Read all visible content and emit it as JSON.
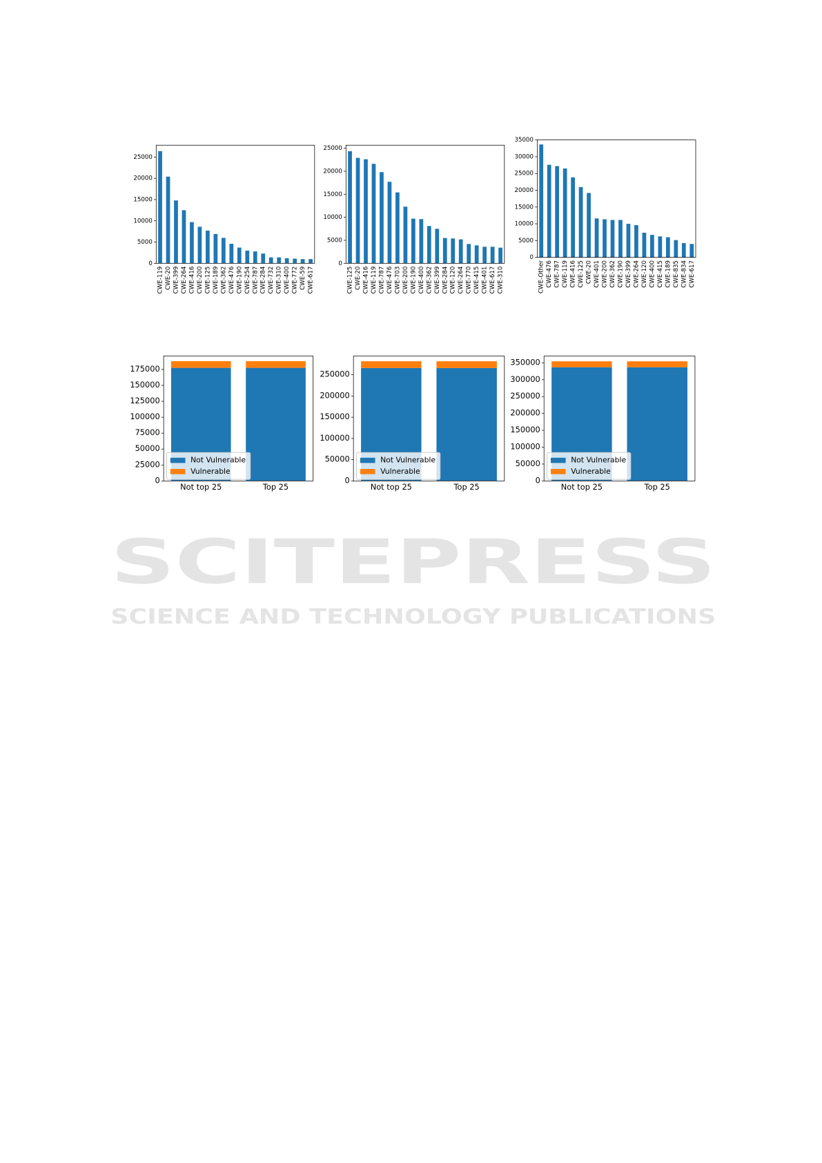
{
  "watermark": {
    "title": "SCITEPRESS",
    "subtitle": "SCIENCE AND TECHNOLOGY PUBLICATIONS"
  },
  "chart_data": [
    {
      "type": "bar",
      "color": "#1f77b4",
      "categories": [
        "CWE-119",
        "CWE-20",
        "CWE-399",
        "CWE-264",
        "CWE-416",
        "CWE-200",
        "CWE-125",
        "CWE-189",
        "CWE-362",
        "CWE-476",
        "CWE-190",
        "CWE-254",
        "CWE-787",
        "CWE-284",
        "CWE-732",
        "CWE-310",
        "CWE-400",
        "CWE-772",
        "CWE-59",
        "CWE-617"
      ],
      "values": [
        26400,
        20400,
        14800,
        12500,
        9700,
        8600,
        7700,
        6900,
        6000,
        4600,
        3700,
        3000,
        2800,
        2300,
        1400,
        1400,
        1200,
        1100,
        1000,
        1000
      ],
      "ylim": [
        0,
        27800
      ],
      "yticks": [
        0,
        5000,
        10000,
        15000,
        20000,
        25000
      ]
    },
    {
      "type": "bar",
      "color": "#1f77b4",
      "categories": [
        "CWE-125",
        "CWE-20",
        "CWE-416",
        "CWE-119",
        "CWE-787",
        "CWE-476",
        "CWE-703",
        "CWE-200",
        "CWE-190",
        "CWE-400",
        "CWE-362",
        "CWE-399",
        "CWE-284",
        "CWE-120",
        "CWE-264",
        "CWE-770",
        "CWE-415",
        "CWE-401",
        "CWE-617",
        "CWE-310"
      ],
      "values": [
        24350,
        22900,
        22600,
        21600,
        19800,
        17700,
        15400,
        12300,
        9700,
        9600,
        8100,
        7500,
        5500,
        5400,
        5200,
        4200,
        3900,
        3600,
        3600,
        3400
      ],
      "ylim": [
        0,
        25650
      ],
      "yticks": [
        0,
        5000,
        10000,
        15000,
        20000,
        25000
      ]
    },
    {
      "type": "bar",
      "color": "#1f77b4",
      "categories": [
        "CWE-Other",
        "CWE-476",
        "CWE-787",
        "CWE-119",
        "CWE-416",
        "CWE-125",
        "CWE-20",
        "CWE-401",
        "CWE-200",
        "CWE-362",
        "CWE-190",
        "CWE-399",
        "CWE-264",
        "CWE-120",
        "CWE-400",
        "CWE-415",
        "CWE-189",
        "CWE-835",
        "CWE-834",
        "CWE-617"
      ],
      "values": [
        33650,
        27600,
        27200,
        26500,
        23850,
        20950,
        19200,
        11600,
        11350,
        11150,
        11150,
        10000,
        9600,
        7350,
        6700,
        6250,
        6000,
        5150,
        4250,
        4000
      ],
      "ylim": [
        0,
        35000
      ],
      "yticks": [
        0,
        5000,
        10000,
        15000,
        20000,
        25000,
        30000,
        35000
      ]
    },
    {
      "type": "stacked_bar",
      "categories": [
        "Not top 25",
        "Top 25"
      ],
      "legend": "lower left",
      "series": [
        {
          "name": "Not Vulnerable",
          "color": "#1f77b4",
          "values": [
            177500,
            177500
          ]
        },
        {
          "name": "Vulnerable",
          "color": "#ff7f0e",
          "values": [
            10500,
            10500
          ]
        }
      ],
      "ylim": [
        0,
        196000
      ],
      "yticks": [
        0,
        25000,
        50000,
        75000,
        100000,
        125000,
        150000,
        175000
      ]
    },
    {
      "type": "stacked_bar",
      "categories": [
        "Not top 25",
        "Top 25"
      ],
      "legend": "lower left",
      "series": [
        {
          "name": "Not Vulnerable",
          "color": "#1f77b4",
          "values": [
            265800,
            265800
          ]
        },
        {
          "name": "Vulnerable",
          "color": "#ff7f0e",
          "values": [
            15900,
            15900
          ]
        }
      ],
      "ylim": [
        0,
        294000
      ],
      "yticks": [
        0,
        50000,
        100000,
        150000,
        200000,
        250000
      ]
    },
    {
      "type": "stacked_bar",
      "categories": [
        "Not top 25",
        "Top 25"
      ],
      "legend": "lower left",
      "series": [
        {
          "name": "Not Vulnerable",
          "color": "#1f77b4",
          "values": [
            336700,
            336700
          ]
        },
        {
          "name": "Vulnerable",
          "color": "#ff7f0e",
          "values": [
            17700,
            17700
          ]
        }
      ],
      "ylim": [
        0,
        370000
      ],
      "yticks": [
        0,
        50000,
        100000,
        150000,
        200000,
        250000,
        300000,
        350000
      ]
    }
  ]
}
